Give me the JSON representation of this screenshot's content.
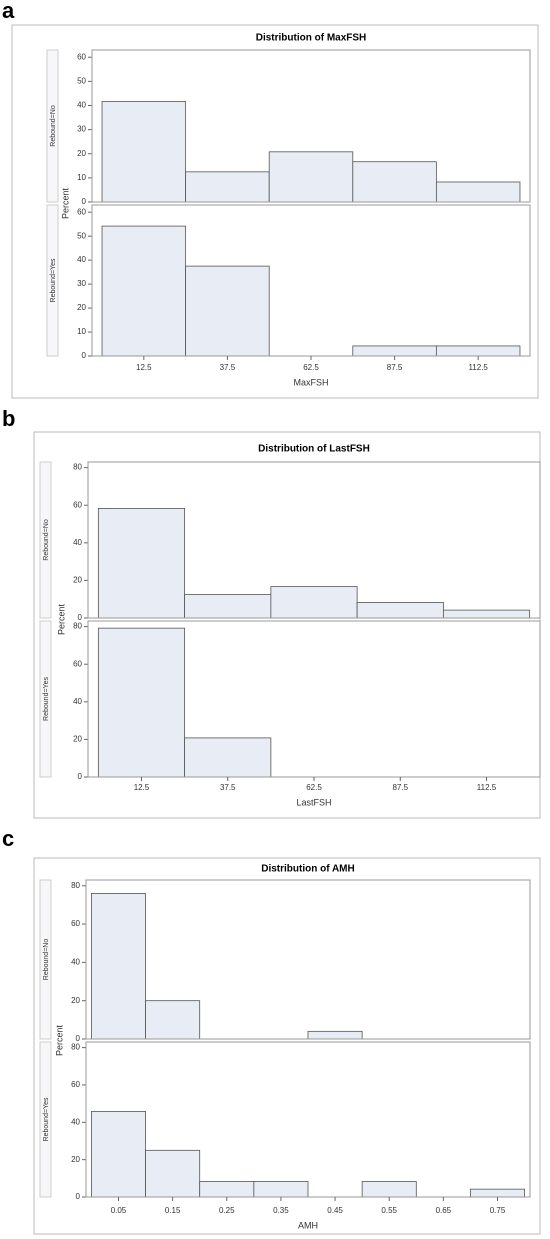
{
  "chart_data": [
    {
      "type": "histogram",
      "label": "a",
      "title": "Distribution of MaxFSH",
      "xlabel": "MaxFSH",
      "ylabel": "Percent",
      "bins": [
        0,
        25,
        50,
        75,
        100,
        125
      ],
      "xlim": [
        -3,
        128
      ],
      "xticks": [
        12.5,
        37.5,
        62.5,
        87.5,
        112.5
      ],
      "color": "#e8ecf4",
      "panels": [
        {
          "name": "Rebound=No",
          "values": [
            41.7,
            12.5,
            20.8,
            16.7,
            8.3
          ],
          "ylim": [
            0,
            63
          ],
          "yticks": [
            0,
            10,
            20,
            30,
            40,
            50,
            60
          ]
        },
        {
          "name": "Rebound=Yes",
          "values": [
            54.2,
            37.5,
            0,
            4.2,
            4.2
          ],
          "ylim": [
            0,
            63
          ],
          "yticks": [
            0,
            10,
            20,
            30,
            40,
            50,
            60
          ]
        }
      ]
    },
    {
      "type": "histogram",
      "label": "b",
      "title": "Distribution of LastFSH",
      "xlabel": "LastFSH",
      "ylabel": "Percent",
      "bins": [
        0,
        25,
        50,
        75,
        100,
        125
      ],
      "xlim": [
        -3,
        128
      ],
      "xticks": [
        12.5,
        37.5,
        62.5,
        87.5,
        112.5
      ],
      "color": "#e8ecf4",
      "panels": [
        {
          "name": "Rebound=No",
          "values": [
            58.3,
            12.5,
            16.7,
            8.3,
            4.2
          ],
          "ylim": [
            0,
            83
          ],
          "yticks": [
            0,
            20,
            40,
            60,
            80
          ]
        },
        {
          "name": "Rebound=Yes",
          "values": [
            79.2,
            20.8,
            0,
            0,
            0
          ],
          "ylim": [
            0,
            83
          ],
          "yticks": [
            0,
            20,
            40,
            60,
            80
          ]
        }
      ]
    },
    {
      "type": "histogram",
      "label": "c",
      "title": "Distribution of AMH",
      "xlabel": "AMH",
      "ylabel": "Percent",
      "bins": [
        0,
        0.1,
        0.2,
        0.3,
        0.4,
        0.5,
        0.6,
        0.7,
        0.8
      ],
      "xlim": [
        -0.01,
        0.81
      ],
      "xticks": [
        0.05,
        0.15,
        0.25,
        0.35,
        0.45,
        0.55,
        0.65,
        0.75
      ],
      "color": "#e8ecf4",
      "panels": [
        {
          "name": "Rebound=No",
          "values": [
            76,
            20,
            0,
            0,
            4,
            0,
            0,
            0
          ],
          "ylim": [
            0,
            83
          ],
          "yticks": [
            0,
            20,
            40,
            60,
            80
          ]
        },
        {
          "name": "Rebound=Yes",
          "values": [
            45.8,
            25,
            8.3,
            8.3,
            0,
            8.3,
            0,
            4.2
          ],
          "ylim": [
            0,
            83
          ],
          "yticks": [
            0,
            20,
            40,
            60,
            80
          ]
        }
      ]
    }
  ]
}
